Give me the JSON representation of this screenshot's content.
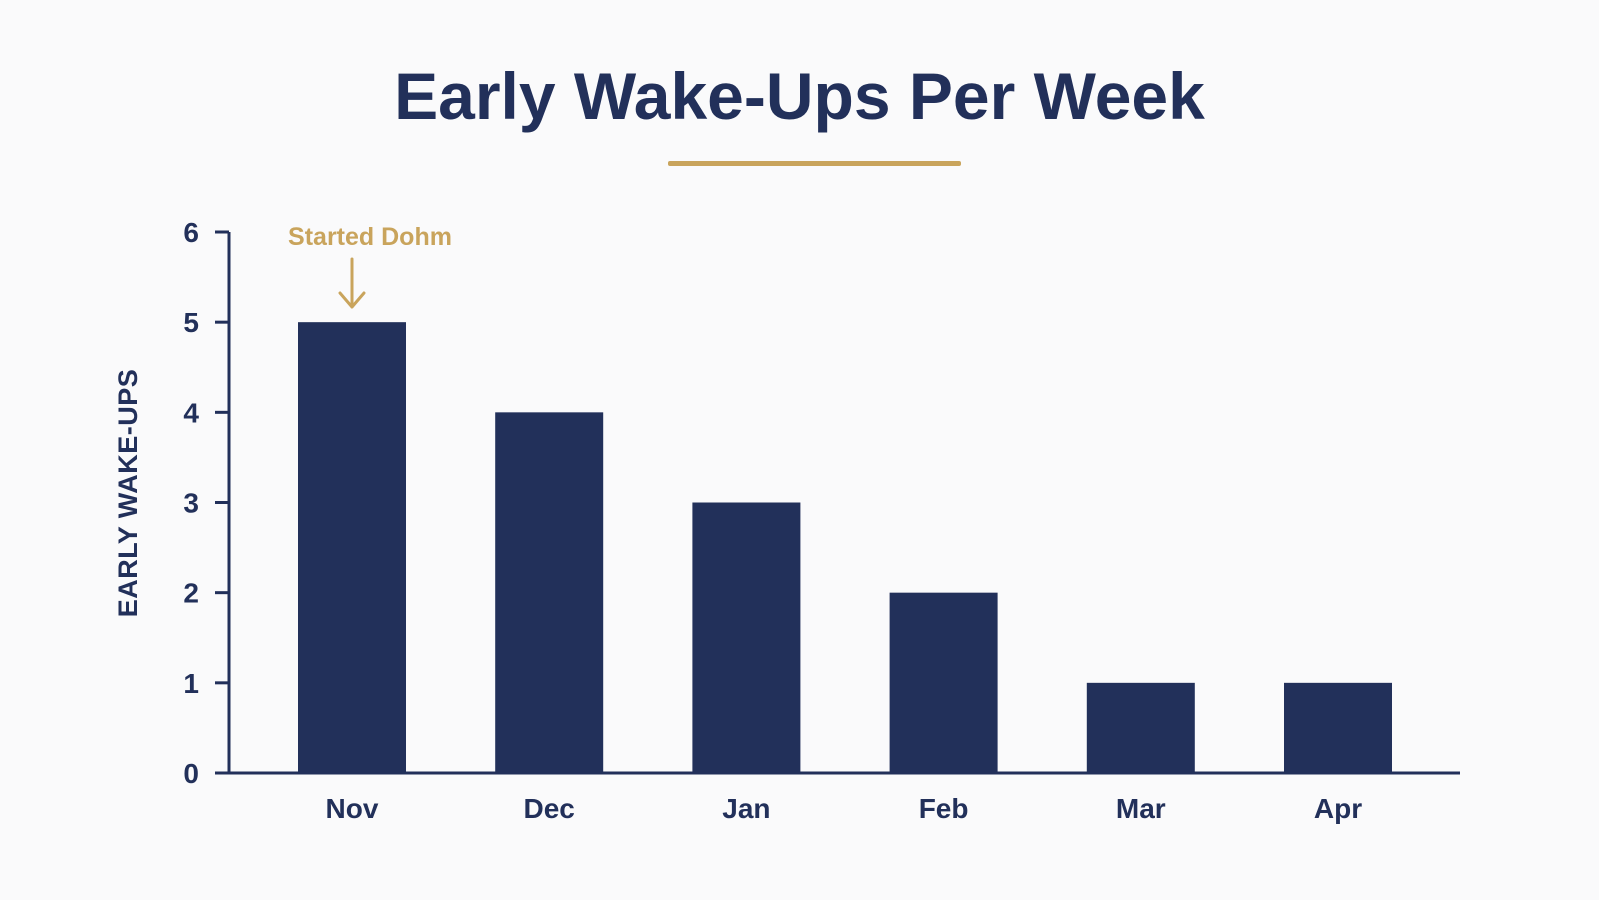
{
  "chart_data": {
    "type": "bar",
    "title": "Early Wake-Ups Per Week",
    "xlabel": "",
    "ylabel": "EARLY WAKE-UPS",
    "categories": [
      "Nov",
      "Dec",
      "Jan",
      "Feb",
      "Mar",
      "Apr"
    ],
    "values": [
      5,
      4,
      3,
      2,
      1,
      1
    ],
    "ylim": [
      0,
      6
    ],
    "yticks": [
      "0",
      "1",
      "2",
      "3",
      "4",
      "5",
      "6"
    ],
    "grid": false,
    "legend": "none",
    "annotation": {
      "text": "Started Dohm",
      "category": "Nov"
    }
  },
  "colors": {
    "bar": "#22305a",
    "axis": "#22305a",
    "text": "#22305a",
    "accent": "#c9a45c",
    "background": "#fafafb"
  }
}
